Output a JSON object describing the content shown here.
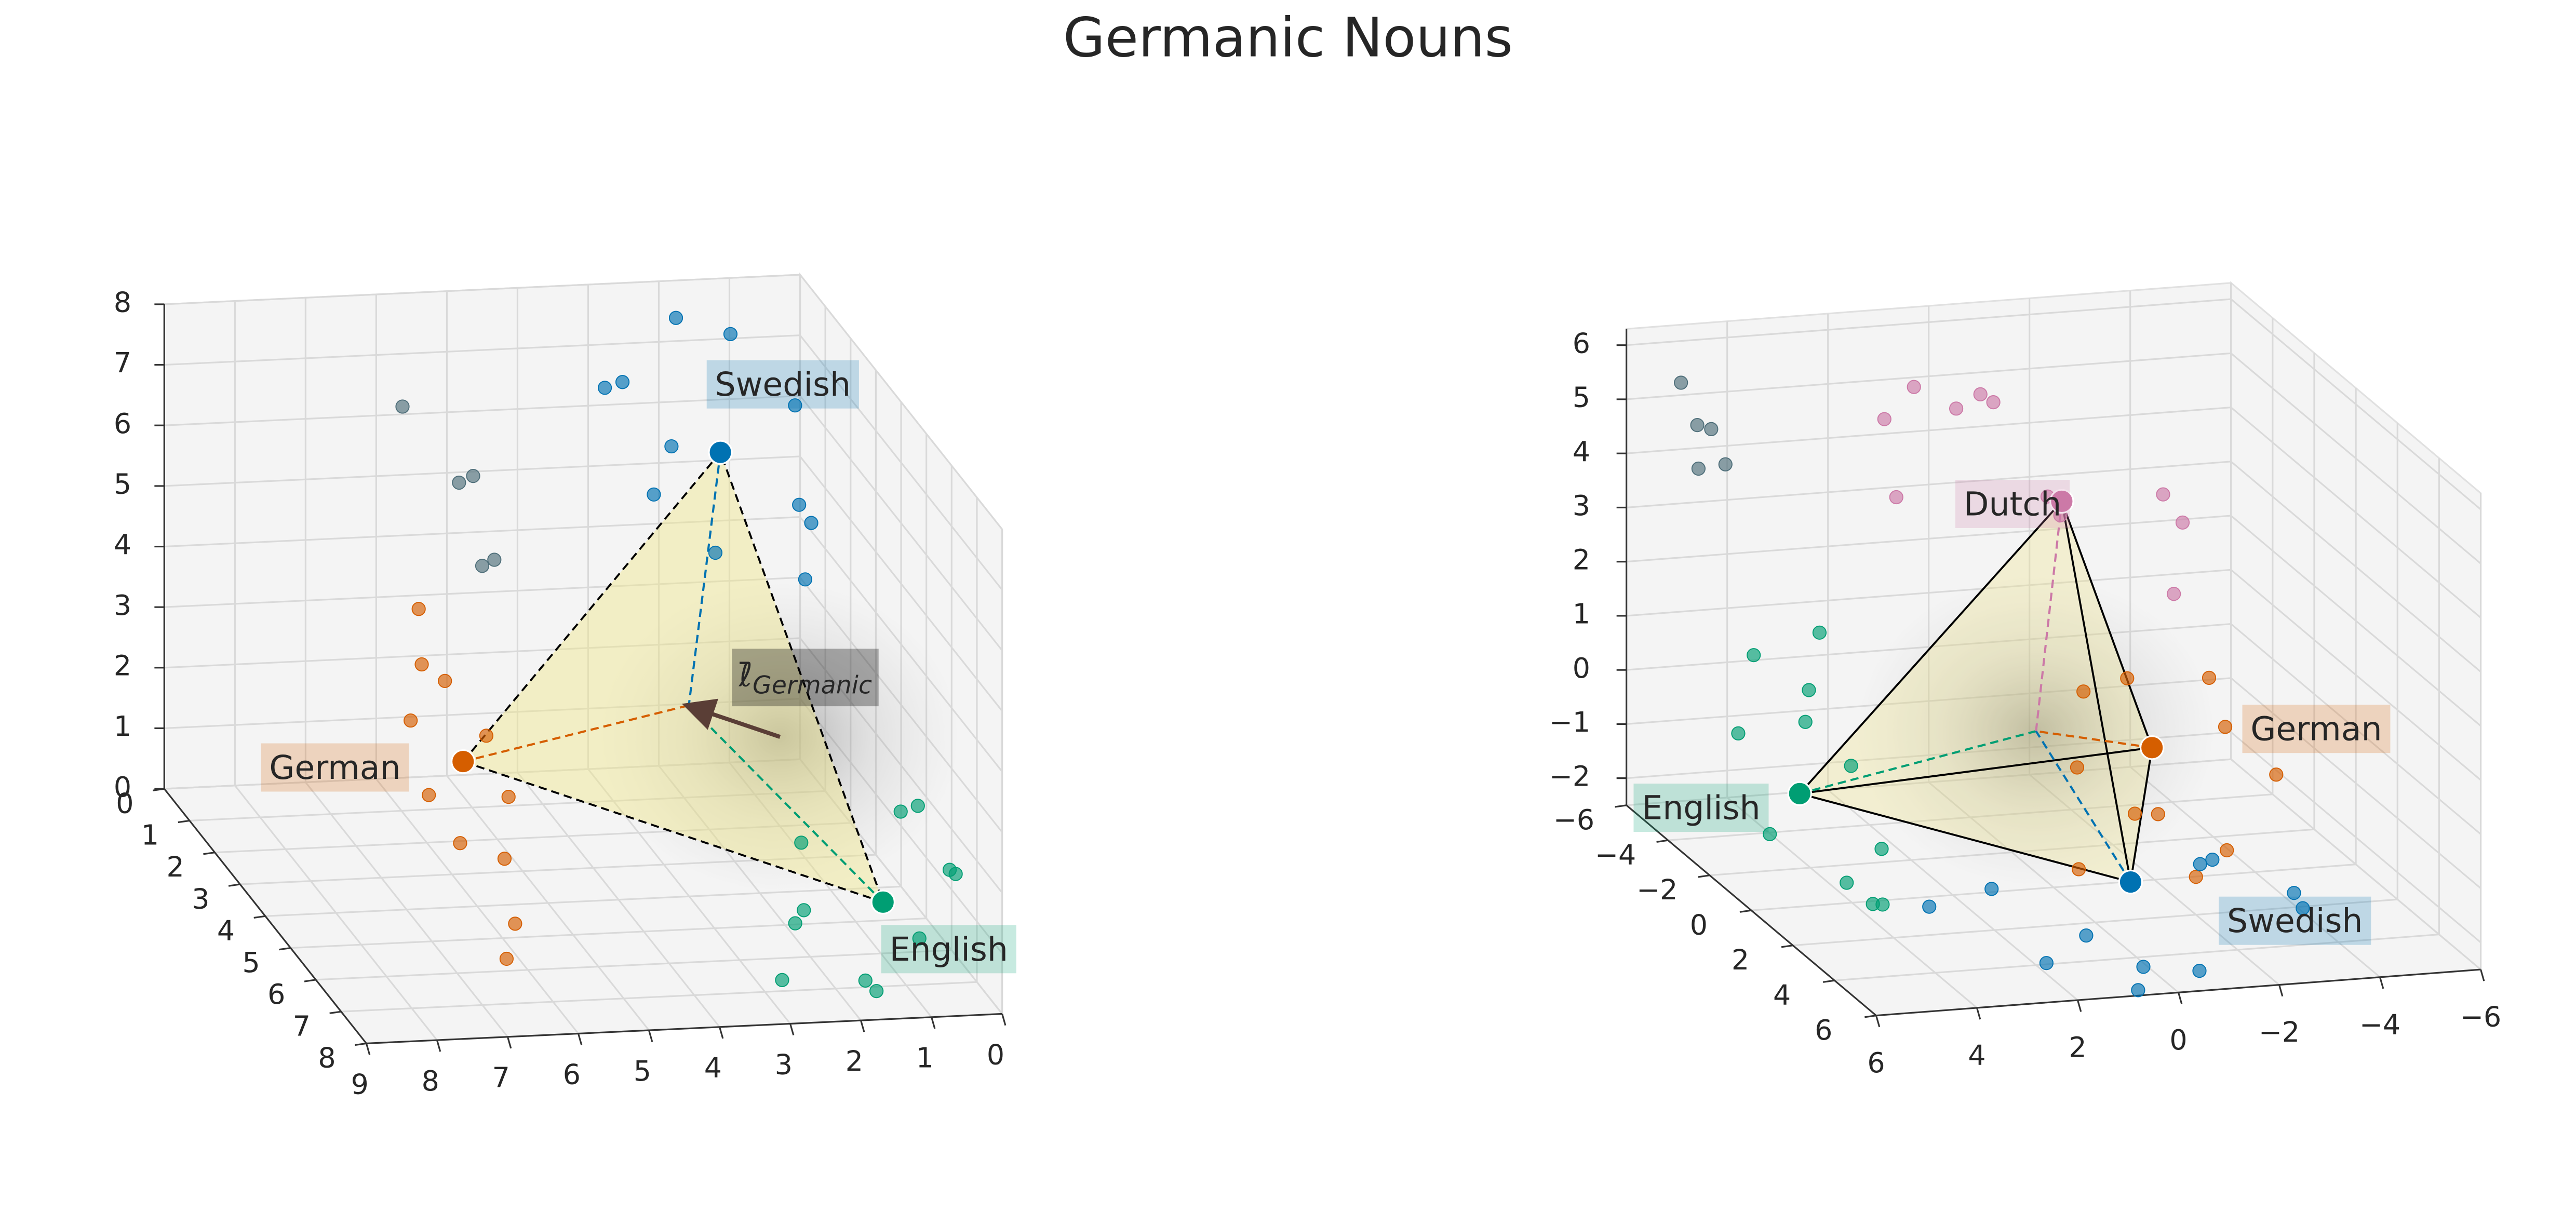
{
  "chart_data": {
    "type": "scatter3d",
    "title": "Germanic Nouns",
    "subplots": [
      {
        "xlim": [
          0,
          9
        ],
        "ylim": [
          0,
          8
        ],
        "zlim": [
          0,
          8
        ],
        "xticks": [
          0,
          1,
          2,
          3,
          4,
          5,
          6,
          7,
          8,
          9
        ],
        "yticks": [
          0,
          1,
          2,
          3,
          4,
          5,
          6,
          7,
          8
        ],
        "zticks": [
          0,
          1,
          2,
          3,
          4,
          5,
          6,
          7,
          8
        ],
        "series": [
          {
            "name": "German",
            "color": "#d55e00",
            "centroid": [
              6.2,
              4.0,
              2.4
            ],
            "x": [
              6.2,
              6.5,
              5.9,
              6.8,
              6.0,
              6.4,
              5.7,
              6.6,
              6.1,
              6.3,
              5.8,
              6.9
            ],
            "y": [
              4.0,
              3.2,
              4.8,
              3.6,
              5.5,
              2.8,
              4.4,
              5.0,
              3.0,
              6.0,
              3.8,
              4.6
            ],
            "z": [
              2.4,
              3.6,
              1.2,
              2.9,
              0.5,
              4.3,
              2.0,
              1.6,
              3.2,
              0.2,
              2.7,
              2.2
            ]
          },
          {
            "name": "Swedish",
            "color": "#0072b2",
            "centroid": [
              1.7,
              1.6,
              6.0
            ],
            "x": [
              1.7,
              2.8,
              0.8,
              3.3,
              1.2,
              2.2,
              0.5,
              3.0,
              1.9,
              1.0,
              2.5,
              0.7
            ],
            "y": [
              1.6,
              0.8,
              2.2,
              1.5,
              0.6,
              2.8,
              1.2,
              2.6,
              0.4,
              3.0,
              1.9,
              2.4
            ],
            "z": [
              6.0,
              6.8,
              5.4,
              7.1,
              7.4,
              5.0,
              6.5,
              5.9,
              7.6,
              4.6,
              6.3,
              5.2
            ]
          },
          {
            "name": "English",
            "color": "#009e73",
            "centroid": [
              1.4,
              7.2,
              1.5
            ],
            "x": [
              1.4,
              2.5,
              0.6,
              1.9,
              0.9,
              2.9,
              1.1,
              2.2,
              0.3,
              1.6,
              2.7,
              0.8
            ],
            "y": [
              7.2,
              6.8,
              7.6,
              7.9,
              6.5,
              7.4,
              7.8,
              6.2,
              7.0,
              7.5,
              7.7,
              6.9
            ],
            "z": [
              1.5,
              1.0,
              2.2,
              0.6,
              2.6,
              0.4,
              1.2,
              2.0,
              1.8,
              0.2,
              1.7,
              2.9
            ]
          },
          {
            "color": "#4f6f7a",
            "x": [
              6.2,
              5.4,
              5.2,
              4.9,
              5.0
            ],
            "y": [
              1.6,
              1.6,
              1.6,
              1.6,
              1.4
            ],
            "z": [
              7.0,
              5.7,
              5.8,
              4.4,
              4.2
            ]
          }
        ],
        "mean_vector": {
          "from": [
            2.0,
            4.8,
            3.0
          ],
          "to": [
            3.1,
            4.3,
            3.3
          ]
        },
        "annotation": {
          "text": "ℓ̄",
          "subscript": "Germanic"
        }
      },
      {
        "xlim": [
          -6,
          6
        ],
        "ylim": [
          -6,
          6
        ],
        "zlim": [
          -2.5,
          6.3
        ],
        "xticks": [
          {
            "value": -6,
            "label": "−6"
          },
          {
            "value": -4,
            "label": "−4"
          },
          {
            "value": -2,
            "label": "−2"
          },
          0,
          2,
          4,
          6
        ],
        "yticks": [
          {
            "value": -6,
            "label": "−6"
          },
          {
            "value": -4,
            "label": "−4"
          },
          {
            "value": -2,
            "label": "−2"
          },
          0,
          2,
          4,
          6
        ],
        "zticks": [
          {
            "value": -2,
            "label": "−2"
          },
          {
            "value": -1,
            "label": "−1"
          },
          0,
          1,
          2,
          3,
          4,
          5,
          6
        ],
        "series": [
          {
            "name": "English",
            "color": "#009e73",
            "centroid": [
              3.8,
              -3.0,
              -1.47
            ],
            "x": [
              3.8,
              4.3,
              3.4,
              4.6,
              3.9,
              3.2,
              4.1,
              3.6,
              4.4,
              3.0,
              4.0,
              3.7
            ],
            "y": [
              -3.0,
              -4.0,
              -1.5,
              -2.5,
              -0.5,
              -3.5,
              -2.0,
              0.5,
              -4.5,
              -1.0,
              1.0,
              -2.8
            ],
            "z": [
              -1.47,
              0.8,
              -0.5,
              -2.0,
              -2.3,
              1.3,
              0.2,
              -2.4,
              -0.8,
              -1.9,
              -2.2,
              0.5
            ]
          },
          {
            "name": "Dutch",
            "color": "#cc79a7",
            "centroid": [
              -1.65,
              -3.6,
              3.35
            ],
            "x": [
              -1.65,
              0.5,
              -3.0,
              1.5,
              -2.2,
              -0.5,
              -3.8,
              0.9,
              -1.2,
              -2.8,
              1.8,
              -0.2
            ],
            "y": [
              -3.6,
              -5.5,
              -2.0,
              -4.5,
              -5.0,
              -1.5,
              -3.0,
              -2.5,
              -5.8,
              -1.0,
              -3.2,
              -4.0
            ],
            "z": [
              3.35,
              5.0,
              3.9,
              4.8,
              2.6,
              4.2,
              3.0,
              5.6,
              4.5,
              2.4,
              3.8,
              5.3
            ]
          },
          {
            "name": "German",
            "color": "#d55e00",
            "centroid": [
              -2.45,
              -1.2,
              -0.48
            ],
            "x": [
              -2.45,
              -3.2,
              -1.5,
              -3.8,
              -2.0,
              -0.8,
              -2.9,
              -1.2,
              -3.5,
              -2.2,
              -0.5,
              -2.7
            ],
            "y": [
              -1.2,
              0.5,
              -2.5,
              1.5,
              2.0,
              -0.5,
              -2.0,
              1.0,
              -1.0,
              3.0,
              0.0,
              -3.0
            ],
            "z": [
              -0.48,
              0.4,
              -1.2,
              -0.2,
              -1.8,
              0.9,
              -2.0,
              -0.9,
              0.8,
              -1.0,
              -2.2,
              0.2
            ]
          },
          {
            "name": "Swedish",
            "color": "#0072b2",
            "centroid": [
              -0.29,
              3.0,
              -1.45
            ],
            "x": [
              -0.29,
              2.0,
              -2.5,
              3.5,
              0.8,
              -1.5,
              -3.5,
              1.5,
              -0.5,
              2.8,
              -2.0,
              0.2
            ],
            "y": [
              3.0,
              4.5,
              5.5,
              2.5,
              6.0,
              4.0,
              3.5,
              5.2,
              5.8,
              3.8,
              2.2,
              4.8
            ],
            "z": [
              -1.45,
              -2.3,
              -1.0,
              -1.8,
              -2.4,
              -0.8,
              -2.0,
              -1.6,
              -2.2,
              -1.1,
              -1.5,
              -2.4
            ]
          },
          {
            "color": "#4f6f7a",
            "x": [
              5.0,
              4.8,
              4.4,
              4.2,
              4.9
            ],
            "y": [
              -5.8,
              -5.5,
              -5.8,
              -5.6,
              -5.2
            ],
            "z": [
              5.3,
              4.6,
              4.4,
              3.8,
              3.9
            ]
          }
        ]
      }
    ]
  }
}
